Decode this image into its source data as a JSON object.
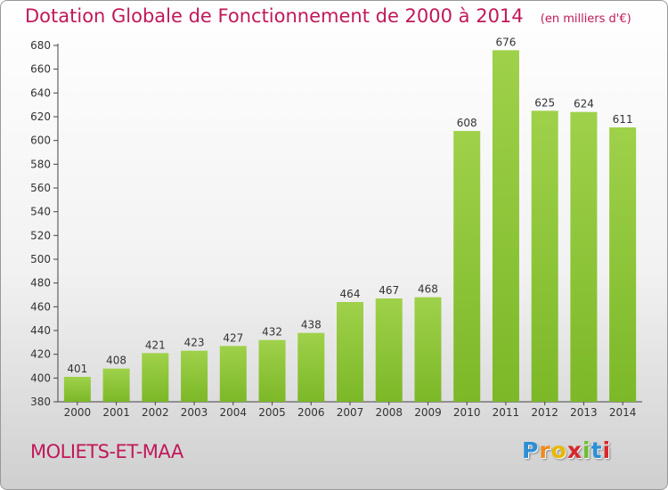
{
  "chart_data": {
    "type": "bar",
    "title": "Dotation Globale de Fonctionnement de 2000 à 2014",
    "unit_note": "(en milliers d'€)",
    "categories": [
      "2000",
      "2001",
      "2002",
      "2003",
      "2004",
      "2005",
      "2006",
      "2007",
      "2008",
      "2009",
      "2010",
      "2011",
      "2012",
      "2013",
      "2014"
    ],
    "values": [
      401,
      408,
      421,
      423,
      427,
      432,
      438,
      464,
      467,
      468,
      608,
      676,
      625,
      624,
      611
    ],
    "ylim": [
      380,
      680
    ],
    "yticks": [
      380,
      400,
      420,
      440,
      460,
      480,
      500,
      520,
      540,
      560,
      580,
      600,
      620,
      640,
      660,
      680
    ],
    "grid": false,
    "xlabel": "",
    "ylabel": "",
    "bar_color": "#7cb828",
    "bar_color_light": "#9fd14a"
  },
  "footer": {
    "commune": "MOLIETS-ET-MAA",
    "logo_letters": [
      "P",
      "r",
      "o",
      "x",
      "i",
      "t",
      "i"
    ],
    "logo_colors": [
      "#2a8fd6",
      "#f08a1c",
      "#e8b800",
      "#d9262c",
      "#6abf2e",
      "#2a8fd6",
      "#d9262c"
    ]
  }
}
